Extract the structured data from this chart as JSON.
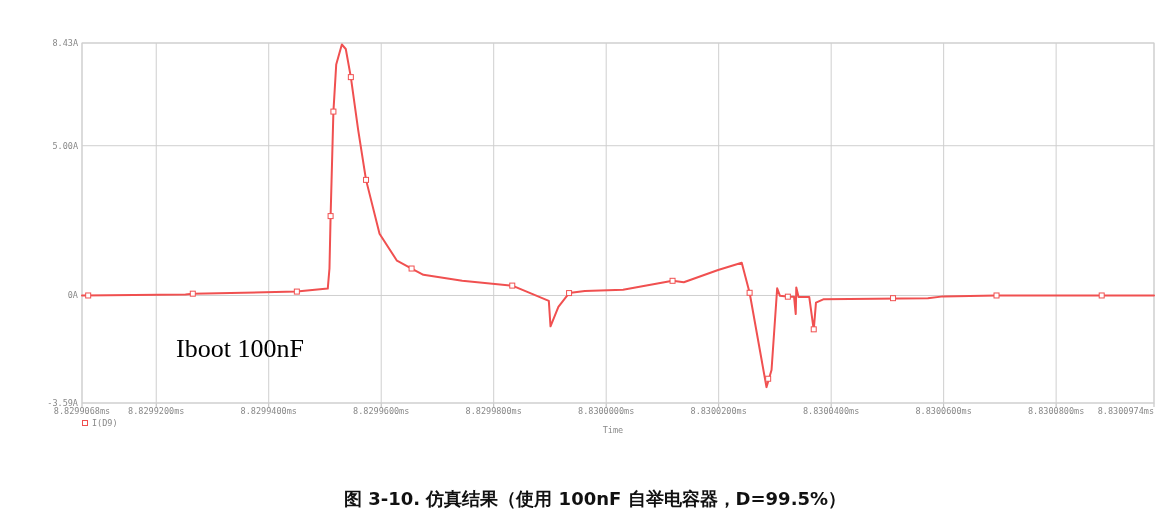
{
  "chart_data": {
    "type": "line",
    "title": "图 3-10. 仿真结果（使用 100nF 自举电容器，D=99.5%）",
    "xlabel": "Time",
    "annotations": [
      "Iboot 100nF"
    ],
    "xlim": [
      8.8299068,
      8.8300974
    ],
    "ylim": [
      -3.59,
      8.43
    ],
    "xticks": [
      {
        "value": 8.8299068,
        "label": "8.8299068ms"
      },
      {
        "value": 8.82992,
        "label": "8.8299200ms"
      },
      {
        "value": 8.82994,
        "label": "8.8299400ms"
      },
      {
        "value": 8.82996,
        "label": "8.8299600ms"
      },
      {
        "value": 8.82998,
        "label": "8.8299800ms"
      },
      {
        "value": 8.83,
        "label": "8.8300000ms"
      },
      {
        "value": 8.83002,
        "label": "8.8300200ms"
      },
      {
        "value": 8.83004,
        "label": "8.8300400ms"
      },
      {
        "value": 8.83006,
        "label": "8.8300600ms"
      },
      {
        "value": 8.83008,
        "label": "8.8300800ms"
      },
      {
        "value": 8.8300974,
        "label": "8.8300974ms"
      }
    ],
    "yticks": [
      {
        "value": 8.43,
        "label": "8.43A"
      },
      {
        "value": 5,
        "label": "5.00A"
      },
      {
        "value": 0,
        "label": "0A"
      },
      {
        "value": -3.59,
        "label": "-3.59A"
      }
    ],
    "grid": true,
    "legend": "bottom left",
    "series": [
      {
        "name": "I(D9)",
        "color": "#f05050",
        "x": [
          8.8299068,
          8.8299252,
          8.8299265,
          8.829945,
          8.8299505,
          8.8299508,
          8.829951,
          8.8299515,
          8.829952,
          8.829953,
          8.8299537,
          8.8299546,
          8.8299559,
          8.8299573,
          8.8299597,
          8.8299628,
          8.8299654,
          8.8299675,
          8.8299744,
          8.8299833,
          8.8299898,
          8.8299901,
          8.8299915,
          8.8299934,
          8.8299962,
          8.830003,
          8.8300118,
          8.8300138,
          8.8300199,
          8.8300241,
          8.8300255,
          8.8300285,
          8.8300294,
          8.8300304,
          8.8300309,
          8.8300325,
          8.8300334,
          8.8300337,
          8.8300338,
          8.8300342,
          8.8300361,
          8.8300369,
          8.8300373,
          8.8300386,
          8.8300572,
          8.8300599,
          8.8300694,
          8.8300974
        ],
        "values": [
          0,
          0.03,
          0.06,
          0.13,
          0.23,
          0.9,
          2.65,
          6.14,
          7.71,
          8.38,
          8.23,
          7.29,
          5.53,
          3.86,
          2.06,
          1.16,
          0.9,
          0.69,
          0.49,
          0.33,
          -0.18,
          -1.03,
          -0.38,
          0.08,
          0.15,
          0.19,
          0.49,
          0.44,
          0.85,
          1.09,
          0.09,
          -3.06,
          -2.49,
          0.24,
          -0.01,
          -0.04,
          -0.04,
          -0.62,
          0.27,
          -0.05,
          -0.05,
          -1.15,
          -0.24,
          -0.13,
          -0.09,
          -0.03,
          0,
          0
        ]
      },
      {
        "type": "scatter",
        "color": "#f05050",
        "marker": "square",
        "x": [
          8.8299079,
          8.8299265,
          8.829945,
          8.829951,
          8.8299515,
          8.8299546,
          8.8299573,
          8.8299654,
          8.8299833,
          8.8299934,
          8.8300118,
          8.8300255,
          8.8300288,
          8.8300323,
          8.8300369,
          8.830051,
          8.8300694,
          8.8300881
        ],
        "values": [
          0,
          0.06,
          0.13,
          2.65,
          6.14,
          7.29,
          3.86,
          0.9,
          0.33,
          0.08,
          0.49,
          0.09,
          -2.78,
          -0.04,
          -1.13,
          -0.09,
          0,
          0
        ]
      }
    ]
  }
}
